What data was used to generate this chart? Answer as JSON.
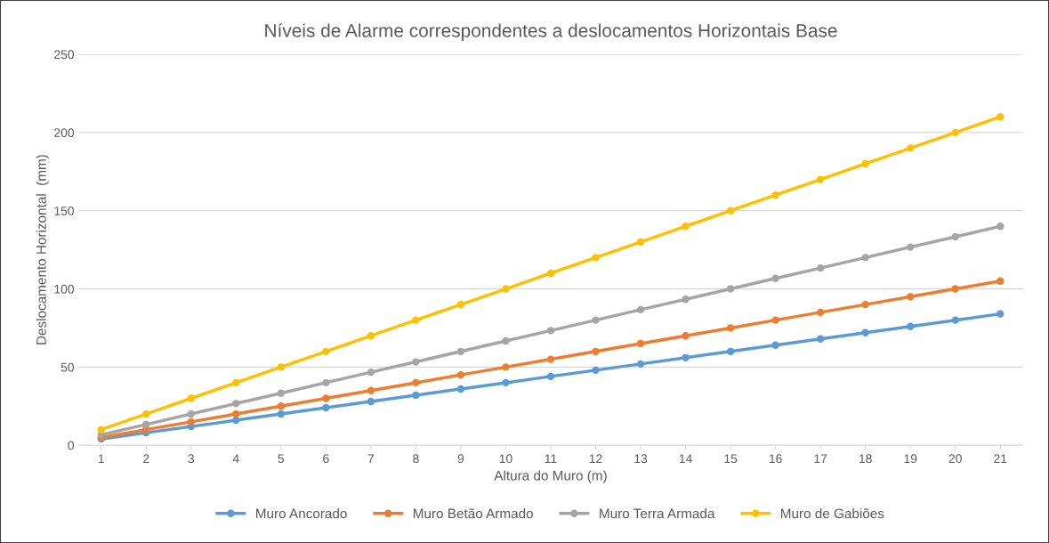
{
  "chart_data": {
    "type": "line",
    "title": "Níveis de Alarme correspondentes a deslocamentos Horizontais Base",
    "xlabel": "Altura do Muro (m)",
    "ylabel": "Deslocamento Horizontal  (mm)",
    "categories": [
      "1",
      "2",
      "3",
      "4",
      "5",
      "6",
      "7",
      "8",
      "9",
      "10",
      "11",
      "12",
      "13",
      "14",
      "15",
      "16",
      "17",
      "18",
      "19",
      "20",
      "21"
    ],
    "series": [
      {
        "name": "Muro Ancorado",
        "color": "#5b9bd5",
        "values": [
          4,
          8,
          12,
          16,
          20,
          24,
          28,
          32,
          36,
          40,
          44,
          48,
          52,
          56,
          60,
          64,
          68,
          72,
          76,
          80,
          84
        ]
      },
      {
        "name": "Muro Betão Armado",
        "color": "#ed7d31",
        "values": [
          5,
          10,
          15,
          20,
          25,
          30,
          35,
          40,
          45,
          50,
          55,
          60,
          65,
          70,
          75,
          80,
          85,
          90,
          95,
          100,
          105
        ]
      },
      {
        "name": "Muro Terra Armada",
        "color": "#a5a5a5",
        "values": [
          6.7,
          13.3,
          20,
          26.7,
          33.3,
          40,
          46.7,
          53.3,
          60,
          66.7,
          73.3,
          80,
          86.7,
          93.3,
          100,
          106.7,
          113.3,
          120,
          126.7,
          133.3,
          140
        ]
      },
      {
        "name": "Muro de Gabiões",
        "color": "#ffc000",
        "values": [
          10,
          20,
          30,
          40,
          50,
          60,
          70,
          80,
          90,
          100,
          110,
          120,
          130,
          140,
          150,
          160,
          170,
          180,
          190,
          200,
          210
        ]
      }
    ],
    "ylim": [
      0,
      250
    ],
    "yticks": [
      0,
      50,
      100,
      150,
      200,
      250
    ],
    "grid": "y",
    "legend": "bottom",
    "marker": "circle",
    "line_style": "solid"
  }
}
